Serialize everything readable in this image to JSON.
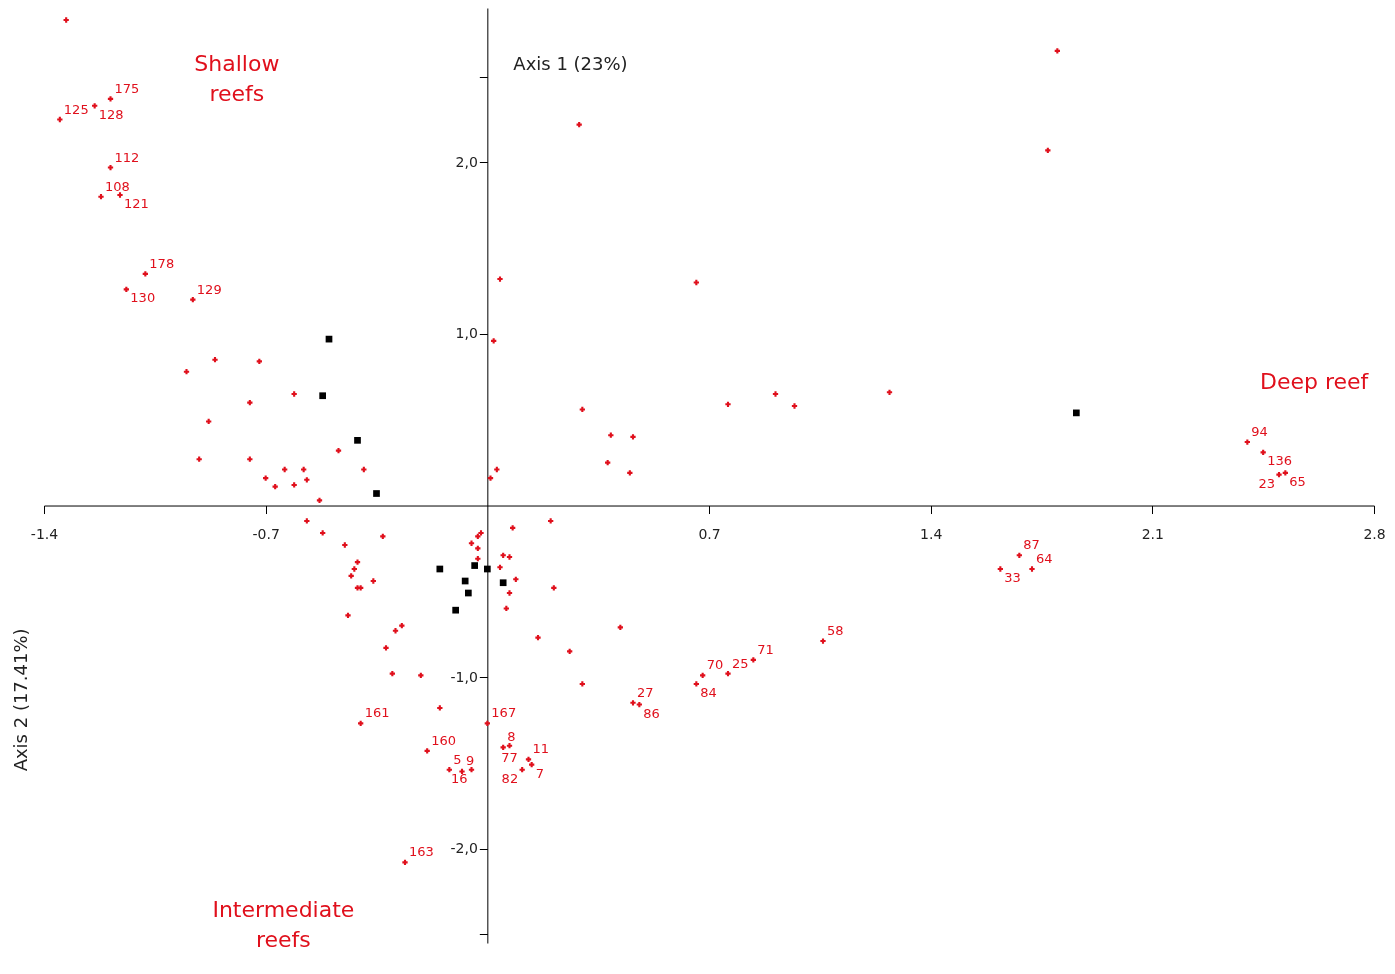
{
  "chart_data": {
    "type": "scatter",
    "xlabel": "Axis 1 (23%)",
    "ylabel": "Axis 2 (17.41%)",
    "xlim": [
      -1.4,
      2.8
    ],
    "ylim": [
      -2.55,
      2.9
    ],
    "xticks": [
      -1.4,
      -0.7,
      0.7,
      1.4,
      2.1,
      2.8
    ],
    "yticks": [
      {
        "value": -2.5,
        "label": null
      },
      {
        "value": -2,
        "label": "-2,0"
      },
      {
        "value": -1,
        "label": "-1,0"
      },
      {
        "value": 1,
        "label": "1,0"
      },
      {
        "value": 2,
        "label": "2,0"
      },
      {
        "value": 2.5,
        "label": null
      }
    ],
    "grid": false,
    "series": [
      {
        "color": "#e0101c",
        "marker": "cross",
        "x": [
          -1.33,
          -1.24,
          -1.19,
          -1.35,
          -1.19,
          -1.22,
          -1.16,
          -1.08,
          -1.14,
          -0.93,
          1.8,
          0.29,
          1.77,
          0.66,
          0.04,
          0.3,
          0.76,
          0.91,
          0.97,
          1.27,
          0.02,
          -0.86,
          -0.72,
          -0.95,
          -0.61,
          -0.75,
          -0.88,
          -0.47,
          -0.91,
          -0.75,
          -0.64,
          -0.58,
          -0.39,
          -0.7,
          -0.57,
          -0.67,
          -0.61,
          -0.53,
          0.03,
          0.01,
          -0.57,
          -0.52,
          -0.33,
          -0.45,
          0.2,
          0.08,
          -0.02,
          -0.03,
          -0.05,
          -0.03,
          -0.03,
          0.05,
          0.07,
          0.04,
          0.09,
          0.07,
          0.06,
          0.21,
          -0.41,
          -0.42,
          -0.43,
          -0.41,
          -0.4,
          -0.36,
          -0.44,
          -0.27,
          -0.29,
          -0.32,
          -0.3,
          -0.21,
          0.16,
          0.26,
          0.3,
          0.39,
          0.46,
          0.38,
          0.45,
          0.42,
          2.4,
          2.45,
          2.52,
          2.5,
          1.68,
          1.62,
          1.72,
          1.06,
          0.84,
          0.68,
          0.76,
          0.66,
          0.46,
          0.48,
          -0.15,
          -0.4,
          0.0,
          -0.19,
          -0.12,
          -0.08,
          -0.05,
          0.05,
          0.07,
          0.13,
          0.14,
          0.11,
          -0.26
        ],
        "values": [
          2.83,
          2.33,
          2.37,
          2.25,
          1.97,
          1.8,
          1.81,
          1.35,
          1.26,
          1.2,
          2.65,
          2.22,
          2.07,
          1.3,
          1.32,
          0.56,
          0.59,
          0.65,
          0.58,
          0.66,
          0.96,
          0.85,
          0.84,
          0.78,
          0.65,
          0.6,
          0.49,
          0.32,
          0.27,
          0.27,
          0.21,
          0.21,
          0.21,
          0.16,
          0.15,
          0.11,
          0.12,
          0.03,
          0.21,
          0.16,
          -0.09,
          -0.16,
          -0.18,
          -0.23,
          -0.09,
          -0.13,
          -0.16,
          -0.18,
          -0.22,
          -0.25,
          -0.31,
          -0.29,
          -0.3,
          -0.36,
          -0.43,
          -0.51,
          -0.6,
          -0.48,
          -0.33,
          -0.37,
          -0.41,
          -0.48,
          -0.48,
          -0.44,
          -0.64,
          -0.7,
          -0.73,
          -0.83,
          -0.98,
          -0.99,
          -0.77,
          -0.85,
          -1.04,
          0.41,
          0.4,
          0.25,
          0.19,
          -0.71,
          0.37,
          0.31,
          0.19,
          0.18,
          -0.29,
          -0.37,
          -0.37,
          -0.79,
          -0.9,
          -0.99,
          -0.98,
          -1.04,
          -1.15,
          -1.16,
          -1.18,
          -1.27,
          -1.27,
          -1.43,
          -1.54,
          -1.55,
          -1.54,
          -1.41,
          -1.4,
          -1.48,
          -1.51,
          -1.54,
          -2.08
        ]
      },
      {
        "color": "#000000",
        "marker": "square",
        "x": [
          -0.5,
          -0.52,
          -0.41,
          -0.35,
          -0.15,
          -0.04,
          0.0,
          -0.07,
          -0.06,
          -0.1,
          0.05,
          1.86
        ],
        "values": [
          0.97,
          0.64,
          0.38,
          0.07,
          -0.37,
          -0.35,
          -0.37,
          -0.44,
          -0.51,
          -0.61,
          -0.45,
          0.54
        ]
      }
    ],
    "annotations": [
      "Shallow\nreefs",
      "Deep reef",
      "Intermediate\nreefs",
      {
        "text": "128",
        "x": -1.24,
        "y": 2.33
      },
      {
        "text": "175",
        "x": -1.19,
        "y": 2.37
      },
      {
        "text": "125",
        "x": -1.35,
        "y": 2.25
      },
      {
        "text": "112",
        "x": -1.19,
        "y": 1.97
      },
      {
        "text": "108",
        "x": -1.22,
        "y": 1.8
      },
      {
        "text": "121",
        "x": -1.16,
        "y": 1.81
      },
      {
        "text": "178",
        "x": -1.08,
        "y": 1.35
      },
      {
        "text": "130",
        "x": -1.14,
        "y": 1.26
      },
      {
        "text": "129",
        "x": -0.93,
        "y": 1.2
      },
      {
        "text": "94",
        "x": 2.4,
        "y": 0.37
      },
      {
        "text": "136",
        "x": 2.45,
        "y": 0.31
      },
      {
        "text": "65",
        "x": 2.52,
        "y": 0.19
      },
      {
        "text": "23",
        "x": 2.5,
        "y": 0.18
      },
      {
        "text": "87",
        "x": 1.68,
        "y": -0.29
      },
      {
        "text": "33",
        "x": 1.62,
        "y": -0.37
      },
      {
        "text": "64",
        "x": 1.72,
        "y": -0.37
      },
      {
        "text": "58",
        "x": 1.06,
        "y": -0.79
      },
      {
        "text": "71",
        "x": 0.84,
        "y": -0.9
      },
      {
        "text": "70",
        "x": 0.68,
        "y": -0.99
      },
      {
        "text": "25",
        "x": 0.76,
        "y": -0.98
      },
      {
        "text": "84",
        "x": 0.66,
        "y": -1.04
      },
      {
        "text": "27",
        "x": 0.46,
        "y": -1.15
      },
      {
        "text": "86",
        "x": 0.48,
        "y": -1.16
      },
      {
        "text": "161",
        "x": -0.4,
        "y": -1.27
      },
      {
        "text": "167",
        "x": 0.0,
        "y": -1.27
      },
      {
        "text": "160",
        "x": -0.19,
        "y": -1.43
      },
      {
        "text": "5",
        "x": -0.12,
        "y": -1.54
      },
      {
        "text": "9",
        "x": -0.08,
        "y": -1.55
      },
      {
        "text": "16",
        "x": -0.05,
        "y": -1.54
      },
      {
        "text": "8",
        "x": 0.05,
        "y": -1.41
      },
      {
        "text": "77",
        "x": 0.07,
        "y": -1.4
      },
      {
        "text": "11",
        "x": 0.13,
        "y": -1.48
      },
      {
        "text": "7",
        "x": 0.14,
        "y": -1.51
      },
      {
        "text": "82",
        "x": 0.11,
        "y": -1.54
      },
      {
        "text": "163",
        "x": -0.26,
        "y": -2.08
      }
    ]
  }
}
